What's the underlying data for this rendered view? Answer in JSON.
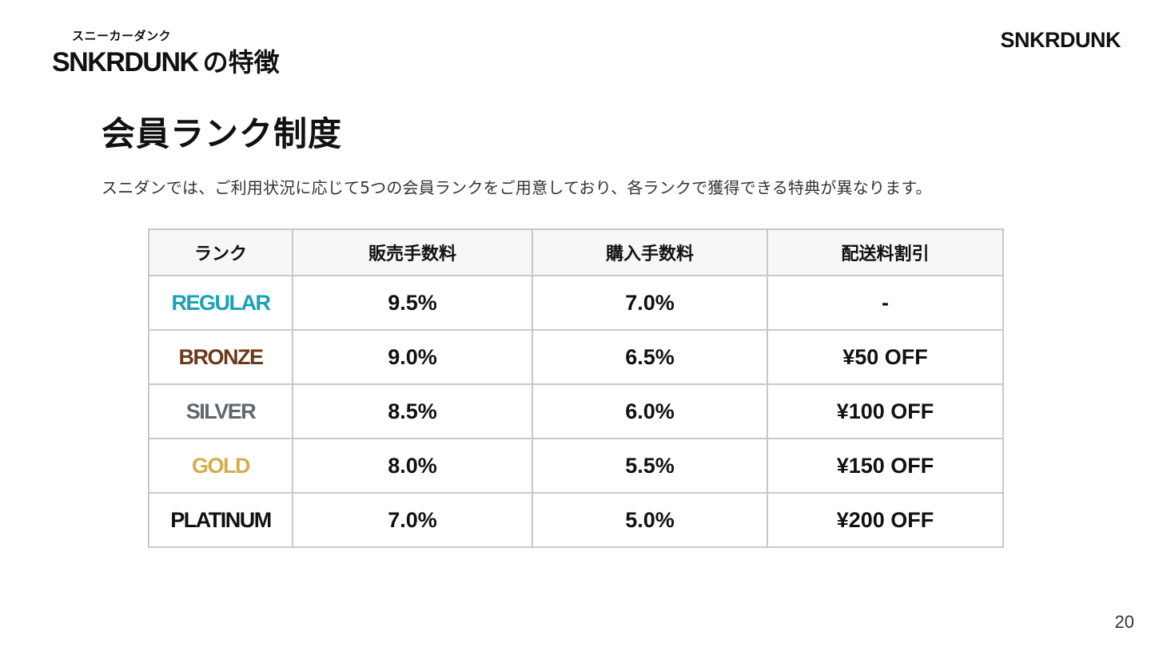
{
  "header": {
    "ruby": "スニーカーダンク",
    "brand": "SNKRDUNK",
    "suffix": "の特徴"
  },
  "logo": {
    "text": "SNKRDUNK"
  },
  "section": {
    "title": "会員ランク制度",
    "description": "スニダンでは、ご利用状況に応じて5つの会員ランクをご用意しており、各ランクで獲得できる特典が異なります。"
  },
  "table": {
    "columns": [
      "ランク",
      "販売手数料",
      "購入手数料",
      "配送料割引"
    ],
    "rows": [
      {
        "rank": "REGULAR",
        "color": "#1aa1b5",
        "sell_fee": "9.5%",
        "buy_fee": "7.0%",
        "shipping_discount": "-"
      },
      {
        "rank": "BRONZE",
        "color": "#6b3a18",
        "sell_fee": "9.0%",
        "buy_fee": "6.5%",
        "shipping_discount": "¥50 OFF"
      },
      {
        "rank": "SILVER",
        "color": "#5f6770",
        "sell_fee": "8.5%",
        "buy_fee": "6.0%",
        "shipping_discount": "¥100 OFF"
      },
      {
        "rank": "GOLD",
        "color": "#d4ad4b",
        "sell_fee": "8.0%",
        "buy_fee": "5.5%",
        "shipping_discount": "¥150 OFF"
      },
      {
        "rank": "PLATINUM",
        "color": "#111111",
        "sell_fee": "7.0%",
        "buy_fee": "5.0%",
        "shipping_discount": "¥200 OFF"
      }
    ]
  },
  "page_number": "20"
}
